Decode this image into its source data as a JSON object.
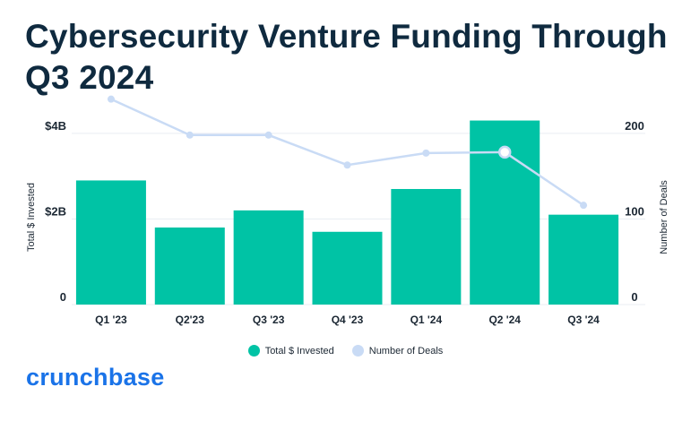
{
  "title": "Cybersecurity Venture Funding Through Q3 2024",
  "brand": "crunchbase",
  "colors": {
    "bars": "#00c3a5",
    "line": "#c9dbf5",
    "grid": "#e9eef3",
    "text": "#1b2733",
    "title": "#0f2a3f",
    "brand": "#1a73e8"
  },
  "chart_data": {
    "type": "bar+line",
    "categories": [
      "Q1 '23",
      "Q2'23",
      "Q3 '23",
      "Q4 '23",
      "Q1 '24",
      "Q2 '24",
      "Q3 '24"
    ],
    "series": [
      {
        "name": "Total $ Invested",
        "type": "bar",
        "axis": "left",
        "values": [
          2.9,
          1.8,
          2.2,
          1.7,
          2.7,
          4.3,
          2.1
        ]
      },
      {
        "name": "Number of Deals",
        "type": "line",
        "axis": "right",
        "values": [
          240,
          198,
          198,
          163,
          177,
          178,
          116
        ]
      }
    ],
    "left_axis": {
      "title": "Total $ Invested",
      "range": [
        0,
        4.5
      ],
      "ticks": [
        0,
        2,
        4
      ],
      "tick_labels": [
        "0",
        "$2B",
        "$4B"
      ]
    },
    "right_axis": {
      "title": "Number of Deals",
      "range": [
        0,
        225
      ],
      "ticks": [
        0,
        100,
        200
      ],
      "tick_labels": [
        "0",
        "100",
        "200"
      ]
    },
    "highlight_index": 5,
    "legend": [
      "Total $ Invested",
      "Number of Deals"
    ],
    "legend_position": "bottom"
  }
}
